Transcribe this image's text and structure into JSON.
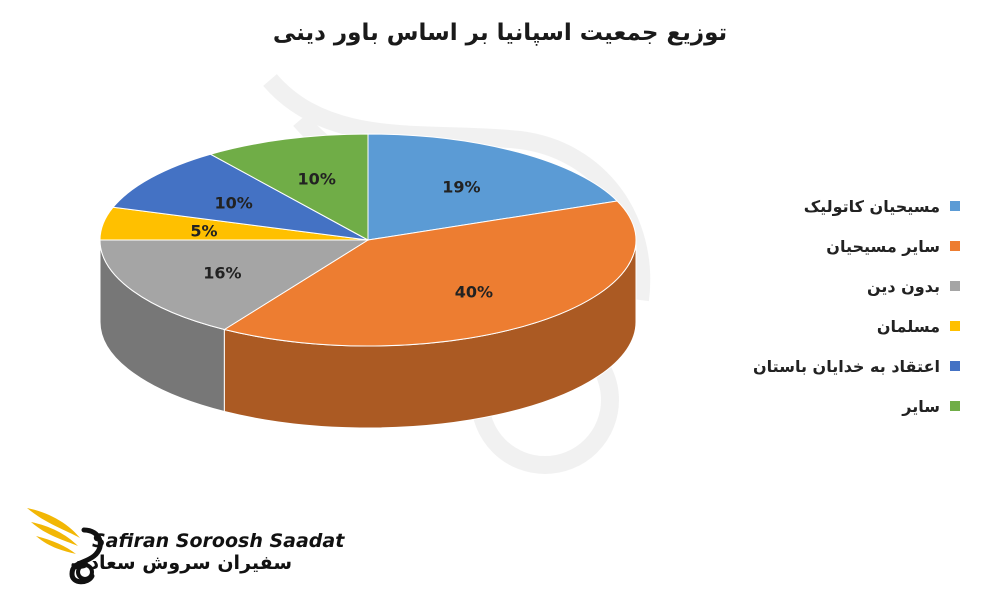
{
  "chart_data": {
    "type": "pie",
    "title": "توزیع جمعیت اسپانیا بر اساس باور دینی",
    "legend_position": "right",
    "slices": [
      {
        "label": "مسیحیان کاتولیک",
        "value": 19,
        "display": "19%",
        "color": "#5b9bd5"
      },
      {
        "label": "سایر مسیحیان",
        "value": 40,
        "display": "40%",
        "color": "#ed7d31"
      },
      {
        "label": "بدون دین",
        "value": 16,
        "display": "16%",
        "color": "#a5a5a5"
      },
      {
        "label": "مسلمان",
        "value": 5,
        "display": "5%",
        "color": "#ffc000"
      },
      {
        "label": "اعتقاد به خدایان باستان",
        "value": 10,
        "display": "10%",
        "color": "#4472c4"
      },
      {
        "label": "سایر",
        "value": 10,
        "display": "10%",
        "color": "#70ad47"
      }
    ]
  },
  "logo": {
    "name_en": "Safiran Soroosh Saadat",
    "name_fa": "سفیران سروش سعادت",
    "color": "#f2b705"
  }
}
